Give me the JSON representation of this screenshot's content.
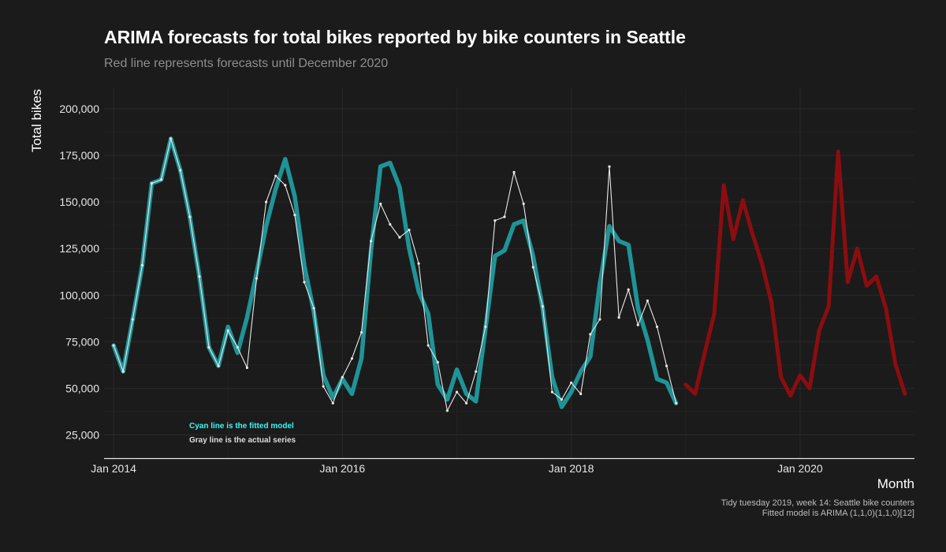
{
  "title": "ARIMA forecasts for total bikes reported by bike counters in Seattle",
  "subtitle": "Red line represents forecasts until December 2020",
  "caption": [
    "Tidy tuesday 2019, week 14: Seattle bike counters",
    "Fitted model is ARIMA (1,1,0)(1,1,0)[12]"
  ],
  "colors": {
    "background": "#1b1b1b",
    "fitted": "#1f9497",
    "actual": "#e8e8e8",
    "forecast": "#8b0d10",
    "annotation_fitted": "#3ff4f4",
    "annotation_actual": "#dcdcdc"
  },
  "chart_data": {
    "type": "line",
    "xlabel": "Month",
    "ylabel": "Total bikes",
    "ylim": [
      12500,
      211000
    ],
    "xlim": [
      "2013-12",
      "2021-01"
    ],
    "y_ticks": [
      25000,
      50000,
      75000,
      100000,
      125000,
      150000,
      175000,
      200000
    ],
    "y_tick_labels": [
      "25,000",
      "50,000",
      "75,000",
      "100,000",
      "125,000",
      "150,000",
      "175,000",
      "200,000"
    ],
    "x_ticks": [
      "2014-01",
      "2016-01",
      "2018-01",
      "2020-01"
    ],
    "x_tick_labels": [
      "Jan 2014",
      "Jan 2016",
      "Jan 2018",
      "Jan 2020"
    ],
    "grid": true,
    "annotations": [
      "Cyan line is the fitted model",
      "Gray line is the actual series"
    ],
    "series": [
      {
        "role": "actual",
        "x": [
          "2014-01",
          "2014-02",
          "2014-03",
          "2014-04",
          "2014-05",
          "2014-06",
          "2014-07",
          "2014-08",
          "2014-09",
          "2014-10",
          "2014-11",
          "2014-12",
          "2015-01",
          "2015-02",
          "2015-03",
          "2015-04",
          "2015-05",
          "2015-06",
          "2015-07",
          "2015-08",
          "2015-09",
          "2015-10",
          "2015-11",
          "2015-12",
          "2016-01",
          "2016-02",
          "2016-03",
          "2016-04",
          "2016-05",
          "2016-06",
          "2016-07",
          "2016-08",
          "2016-09",
          "2016-10",
          "2016-11",
          "2016-12",
          "2017-01",
          "2017-02",
          "2017-03",
          "2017-04",
          "2017-05",
          "2017-06",
          "2017-07",
          "2017-08",
          "2017-09",
          "2017-10",
          "2017-11",
          "2017-12",
          "2018-01",
          "2018-02",
          "2018-03",
          "2018-04",
          "2018-05",
          "2018-06",
          "2018-07",
          "2018-08",
          "2018-09",
          "2018-10",
          "2018-11",
          "2018-12"
        ],
        "values": [
          73000,
          59000,
          87000,
          116000,
          160000,
          162000,
          184000,
          167000,
          142000,
          110000,
          72000,
          62000,
          81000,
          72000,
          61000,
          109000,
          150000,
          164000,
          159000,
          143000,
          107000,
          93000,
          51000,
          42000,
          56000,
          66000,
          80000,
          129000,
          149000,
          138000,
          131000,
          135000,
          117000,
          73000,
          64000,
          38000,
          48000,
          42000,
          59000,
          83000,
          140000,
          142000,
          166000,
          149000,
          115000,
          94000,
          48000,
          44000,
          53000,
          47000,
          79000,
          87000,
          169000,
          88000,
          103000,
          84000,
          97000,
          83000,
          62000,
          42000
        ]
      },
      {
        "role": "fitted",
        "x": [
          "2014-01",
          "2014-02",
          "2014-03",
          "2014-04",
          "2014-05",
          "2014-06",
          "2014-07",
          "2014-08",
          "2014-09",
          "2014-10",
          "2014-11",
          "2014-12",
          "2015-01",
          "2015-02",
          "2015-03",
          "2015-04",
          "2015-05",
          "2015-06",
          "2015-07",
          "2015-08",
          "2015-09",
          "2015-10",
          "2015-11",
          "2015-12",
          "2016-01",
          "2016-02",
          "2016-03",
          "2016-04",
          "2016-05",
          "2016-06",
          "2016-07",
          "2016-08",
          "2016-09",
          "2016-10",
          "2016-11",
          "2016-12",
          "2017-01",
          "2017-02",
          "2017-03",
          "2017-04",
          "2017-05",
          "2017-06",
          "2017-07",
          "2017-08",
          "2017-09",
          "2017-10",
          "2017-11",
          "2017-12",
          "2018-01",
          "2018-02",
          "2018-03",
          "2018-04",
          "2018-05",
          "2018-06",
          "2018-07",
          "2018-08",
          "2018-09",
          "2018-10",
          "2018-11",
          "2018-12"
        ],
        "values": [
          73000,
          59000,
          87000,
          116000,
          160000,
          162000,
          184000,
          167000,
          142000,
          110000,
          72000,
          62000,
          83000,
          69000,
          88000,
          112000,
          137000,
          157000,
          173000,
          153000,
          116000,
          91000,
          57000,
          45000,
          55000,
          47000,
          66000,
          124000,
          169000,
          171000,
          158000,
          125000,
          102000,
          90000,
          52000,
          44000,
          60000,
          47000,
          43000,
          82000,
          121000,
          124000,
          138000,
          140000,
          121000,
          93000,
          56000,
          40000,
          48000,
          59000,
          67000,
          106000,
          137000,
          129000,
          127000,
          93000,
          76000,
          55000,
          53000,
          42000
        ]
      },
      {
        "role": "forecast",
        "x": [
          "2019-01",
          "2019-02",
          "2019-03",
          "2019-04",
          "2019-05",
          "2019-06",
          "2019-07",
          "2019-08",
          "2019-09",
          "2019-10",
          "2019-11",
          "2019-12",
          "2020-01",
          "2020-02",
          "2020-03",
          "2020-04",
          "2020-05",
          "2020-06",
          "2020-07",
          "2020-08",
          "2020-09",
          "2020-10",
          "2020-11",
          "2020-12"
        ],
        "values": [
          52000,
          47000,
          69000,
          90000,
          159000,
          130000,
          151000,
          133000,
          117000,
          96000,
          56000,
          46000,
          57000,
          50000,
          81000,
          94000,
          177000,
          107000,
          125000,
          105000,
          110000,
          93000,
          63000,
          47000
        ]
      }
    ]
  }
}
